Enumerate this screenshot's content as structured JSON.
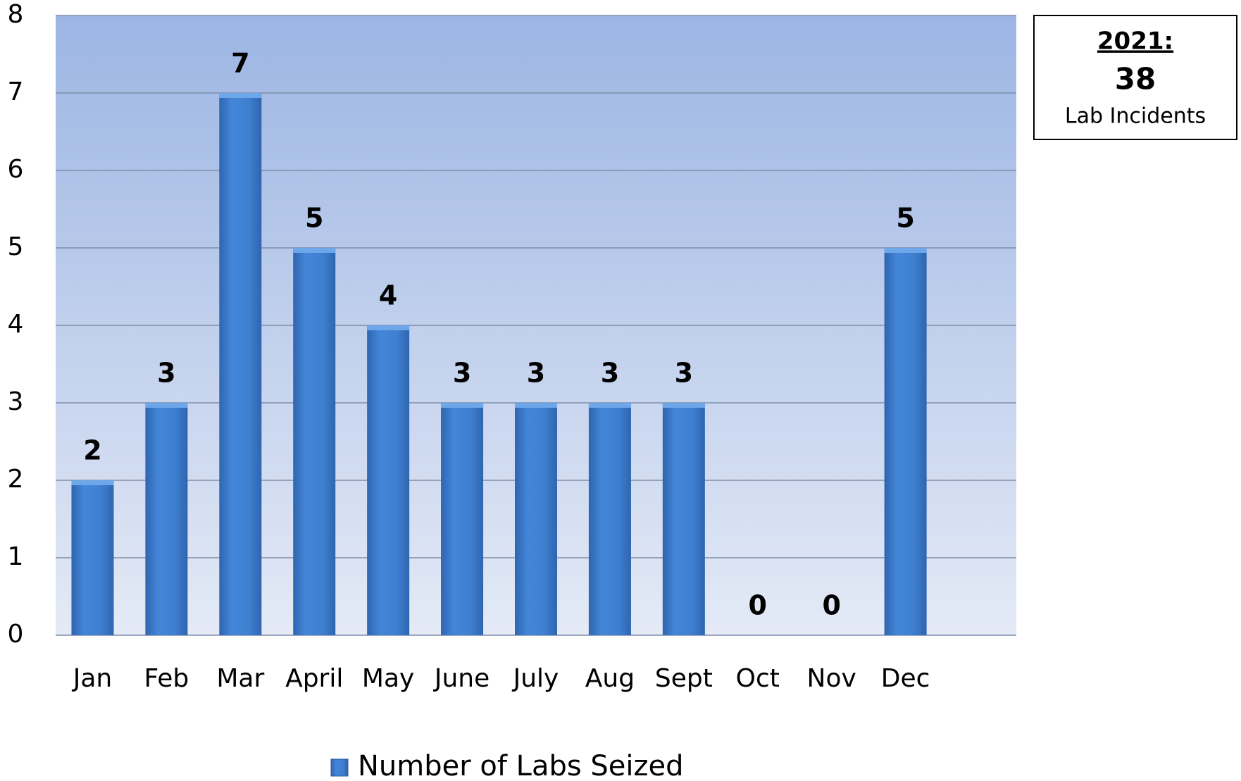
{
  "chart_data": {
    "type": "bar",
    "categories": [
      "Jan",
      "Feb",
      "Mar",
      "April",
      "May",
      "June",
      "July",
      "Aug",
      "Sept",
      "Oct",
      "Nov",
      "Dec",
      null
    ],
    "series": [
      {
        "name": "Number of Labs Seized",
        "color": "#3f7fd0",
        "values": [
          2,
          3,
          7,
          5,
          4,
          3,
          3,
          3,
          3,
          0,
          0,
          5,
          null
        ]
      }
    ],
    "ylim": [
      0,
      8
    ],
    "yticks": [
      0,
      1,
      2,
      3,
      4,
      5,
      6,
      7,
      8
    ],
    "grid": true,
    "legend": "bottom",
    "annotation": {
      "heading": "2021:",
      "total": 38,
      "label": "Lab Incidents"
    }
  }
}
